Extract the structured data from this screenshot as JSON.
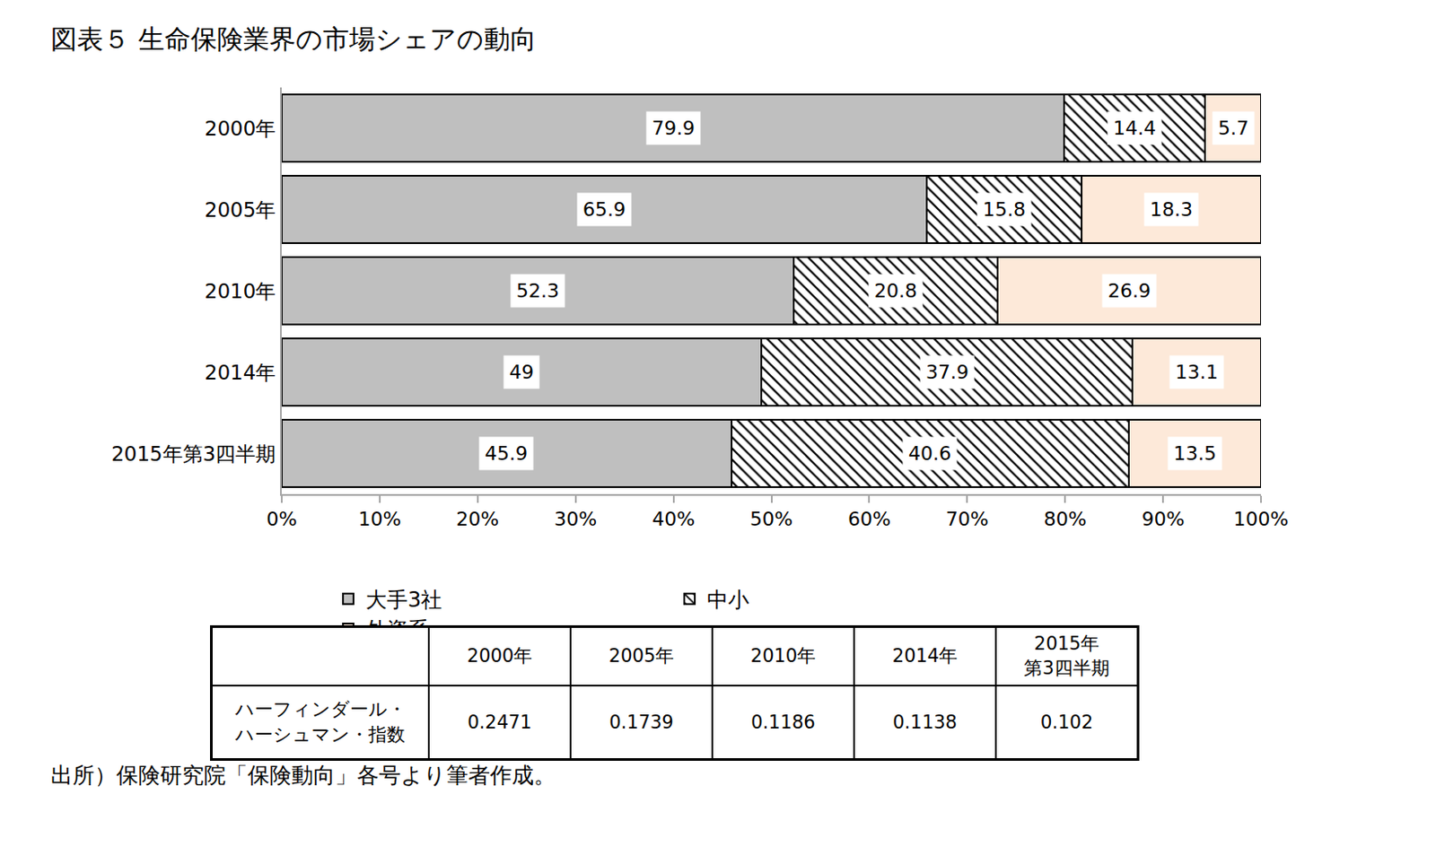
{
  "chart_data": {
    "type": "bar",
    "title": "図表５ 生命保険業界の市場シェアの動向",
    "orientation": "horizontal",
    "stacked": true,
    "data_labels": true,
    "legend": "bottom",
    "grid": false,
    "categories": [
      "2000年",
      "2005年",
      "2010年",
      "2014年",
      "2015年第3四半期"
    ],
    "series": [
      {
        "name": "大手3社",
        "color": "#bfbfbf",
        "values": [
          79.9,
          65.9,
          52.3,
          49,
          45.9
        ]
      },
      {
        "name": "中小",
        "color": "#ffffff",
        "marker": "hatch",
        "values": [
          14.4,
          15.8,
          20.8,
          37.9,
          40.6
        ]
      },
      {
        "name": "外資系",
        "color": "#fde9d9",
        "values": [
          5.7,
          18.3,
          26.9,
          13.1,
          13.5
        ]
      }
    ],
    "xlim": [
      0,
      100
    ],
    "xticks": [
      {
        "value": 0,
        "label": "0%"
      },
      {
        "value": 10,
        "label": "10%"
      },
      {
        "value": 20,
        "label": "20%"
      },
      {
        "value": 30,
        "label": "30%"
      },
      {
        "value": 40,
        "label": "40%"
      },
      {
        "value": 50,
        "label": "50%"
      },
      {
        "value": 60,
        "label": "60%"
      },
      {
        "value": 70,
        "label": "70%"
      },
      {
        "value": 80,
        "label": "80%"
      },
      {
        "value": 90,
        "label": "90%"
      },
      {
        "value": 100,
        "label": "100%"
      }
    ]
  },
  "table": {
    "columns": [
      "2000年",
      "2005年",
      "2010年",
      "2014年",
      "2015年\n第3四半期"
    ],
    "rows": [
      {
        "label": "ハーフィンダール・\nハーシュマン・指数",
        "values": [
          "0.2471",
          "0.1739",
          "0.1186",
          "0.1138",
          "0.102"
        ]
      }
    ]
  },
  "source": "出所）保険研究院「保険動向」各号より筆者作成。"
}
